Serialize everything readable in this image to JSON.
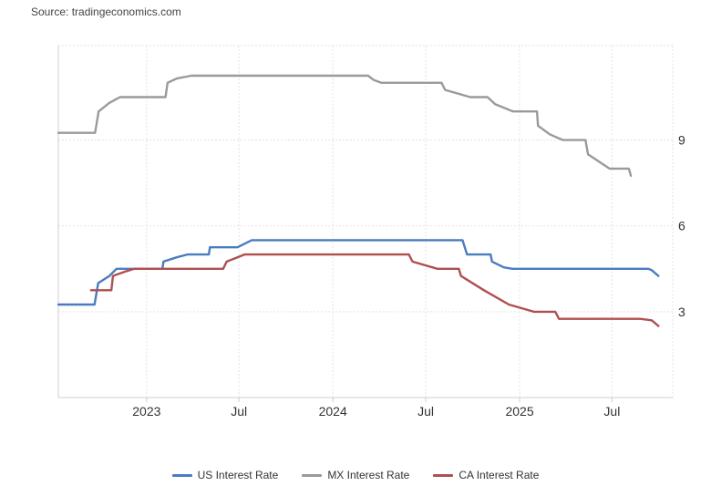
{
  "source": "Source: tradingeconomics.com",
  "chart_data": {
    "type": "line",
    "title": "",
    "xlabel": "",
    "ylabel": "",
    "xlim": [
      "2022-07-12",
      "2025-10-28"
    ],
    "ylim": [
      0,
      12.3
    ],
    "yticks": [
      3,
      6,
      9
    ],
    "ytick_labels": [
      "3",
      "6",
      "9"
    ],
    "xticks": [
      "2023-01-01",
      "2023-07-01",
      "2024-01-01",
      "2024-07-01",
      "2025-01-01",
      "2025-07-01"
    ],
    "xtick_labels": [
      "2023",
      "Jul",
      "2024",
      "Jul",
      "2025",
      "Jul"
    ],
    "grid": true,
    "legend_position": "bottom",
    "series": [
      {
        "name": "US Interest Rate",
        "color": "#4a7cc0",
        "points": [
          [
            "2022-07-12",
            3.25
          ],
          [
            "2022-09-21",
            3.25
          ],
          [
            "2022-09-28",
            4.0
          ],
          [
            "2022-10-20",
            4.25
          ],
          [
            "2022-11-03",
            4.5
          ],
          [
            "2022-12-14",
            4.5
          ],
          [
            "2023-02-01",
            4.5
          ],
          [
            "2023-02-03",
            4.75
          ],
          [
            "2023-03-01",
            4.9
          ],
          [
            "2023-03-22",
            5.0
          ],
          [
            "2023-05-03",
            5.0
          ],
          [
            "2023-05-05",
            5.25
          ],
          [
            "2023-06-28",
            5.25
          ],
          [
            "2023-07-26",
            5.5
          ],
          [
            "2024-09-11",
            5.5
          ],
          [
            "2024-09-20",
            5.0
          ],
          [
            "2024-11-05",
            5.0
          ],
          [
            "2024-11-08",
            4.75
          ],
          [
            "2024-12-01",
            4.55
          ],
          [
            "2024-12-18",
            4.5
          ],
          [
            "2025-09-10",
            4.5
          ],
          [
            "2025-09-17",
            4.45
          ],
          [
            "2025-09-30",
            4.25
          ]
        ]
      },
      {
        "name": "MX Interest Rate",
        "color": "#9a9a9a",
        "points": [
          [
            "2022-07-12",
            9.25
          ],
          [
            "2022-09-22",
            9.25
          ],
          [
            "2022-09-29",
            10.0
          ],
          [
            "2022-10-20",
            10.3
          ],
          [
            "2022-11-10",
            10.5
          ],
          [
            "2022-12-15",
            10.5
          ],
          [
            "2023-02-07",
            10.5
          ],
          [
            "2023-02-11",
            11.0
          ],
          [
            "2023-03-01",
            11.15
          ],
          [
            "2023-03-30",
            11.25
          ],
          [
            "2024-03-10",
            11.25
          ],
          [
            "2024-03-21",
            11.1
          ],
          [
            "2024-04-05",
            11.0
          ],
          [
            "2024-08-01",
            11.0
          ],
          [
            "2024-08-08",
            10.75
          ],
          [
            "2024-09-26",
            10.5
          ],
          [
            "2024-10-30",
            10.5
          ],
          [
            "2024-11-14",
            10.25
          ],
          [
            "2024-12-19",
            10.0
          ],
          [
            "2025-02-04",
            10.0
          ],
          [
            "2025-02-06",
            9.5
          ],
          [
            "2025-03-01",
            9.2
          ],
          [
            "2025-03-27",
            9.0
          ],
          [
            "2025-05-10",
            9.0
          ],
          [
            "2025-05-15",
            8.5
          ],
          [
            "2025-06-26",
            8.0
          ],
          [
            "2025-08-03",
            8.0
          ],
          [
            "2025-08-07",
            7.75
          ]
        ]
      },
      {
        "name": "CA Interest Rate",
        "color": "#b04f4f",
        "points": [
          [
            "2022-09-14",
            3.75
          ],
          [
            "2022-10-24",
            3.75
          ],
          [
            "2022-10-27",
            4.25
          ],
          [
            "2022-11-20",
            4.4
          ],
          [
            "2022-12-07",
            4.5
          ],
          [
            "2023-05-31",
            4.5
          ],
          [
            "2023-06-07",
            4.75
          ],
          [
            "2023-07-12",
            5.0
          ],
          [
            "2024-05-29",
            5.0
          ],
          [
            "2024-06-05",
            4.75
          ],
          [
            "2024-07-24",
            4.5
          ],
          [
            "2024-09-04",
            4.5
          ],
          [
            "2024-09-08",
            4.25
          ],
          [
            "2024-10-23",
            3.75
          ],
          [
            "2024-12-11",
            3.25
          ],
          [
            "2025-01-29",
            3.0
          ],
          [
            "2025-03-12",
            3.0
          ],
          [
            "2025-03-19",
            2.75
          ],
          [
            "2025-08-25",
            2.75
          ],
          [
            "2025-09-17",
            2.7
          ],
          [
            "2025-09-30",
            2.5
          ]
        ]
      }
    ]
  }
}
